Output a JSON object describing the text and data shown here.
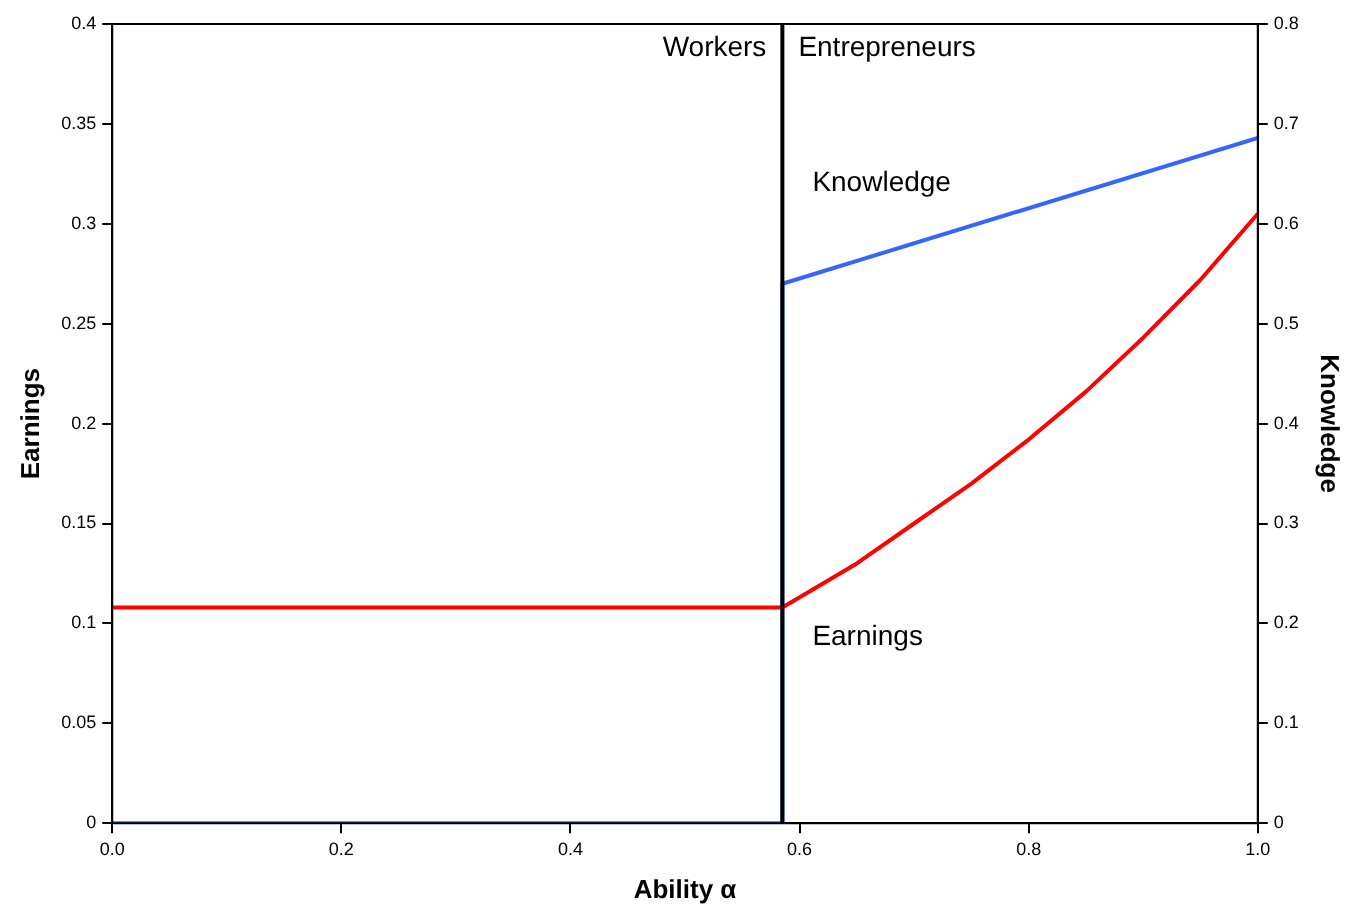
{
  "chart_data": {
    "type": "line",
    "xlabel": "Ability α",
    "ylabel": "Earnings",
    "y2label": "Knowledge",
    "xlim": [
      0,
      1
    ],
    "xticks": [
      {
        "value": 0,
        "label": "0.0"
      },
      {
        "value": 0.2,
        "label": "0.2"
      },
      {
        "value": 0.4,
        "label": "0.4"
      },
      {
        "value": 0.6,
        "label": "0.6"
      },
      {
        "value": 0.8,
        "label": "0.8"
      },
      {
        "value": 1,
        "label": "1.0"
      }
    ],
    "ylim": [
      0,
      0.4
    ],
    "yticks": [
      0,
      0.05,
      0.1,
      0.15,
      0.2,
      0.25,
      0.3,
      0.35,
      0.4
    ],
    "y2lim": [
      0,
      0.8
    ],
    "y2ticks": [
      0,
      0.1,
      0.2,
      0.3,
      0.4,
      0.5,
      0.6,
      0.7,
      0.8
    ],
    "series": [
      {
        "name": "Earnings",
        "color": "#ff0000",
        "x": [
          0,
          0.585,
          0.65,
          0.7,
          0.75,
          0.8,
          0.85,
          0.9,
          0.95,
          1
        ],
        "values": [
          0.108,
          0.108,
          0.13,
          0.15,
          0.17,
          0.192,
          0.216,
          0.243,
          0.272,
          0.305
        ]
      },
      {
        "name": "Knowledge",
        "color": "#3366ff",
        "axis": "y2",
        "x": [
          0,
          0.585,
          0.585,
          1
        ],
        "values": [
          0,
          0,
          0.54,
          0.686
        ]
      }
    ],
    "ref_lines": [
      {
        "axis": "x",
        "value": 0.585,
        "color": "#000000"
      }
    ],
    "annotations": [
      "Workers",
      "Entrepreneurs"
    ],
    "grid": false,
    "legend": false,
    "marker": "none",
    "line_style": "solid"
  }
}
